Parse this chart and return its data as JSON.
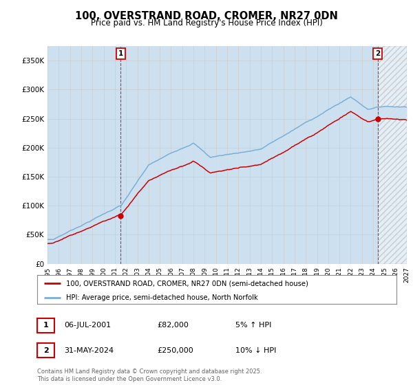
{
  "title": "100, OVERSTRAND ROAD, CROMER, NR27 0DN",
  "subtitle": "Price paid vs. HM Land Registry's House Price Index (HPI)",
  "legend_line1": "100, OVERSTRAND ROAD, CROMER, NR27 0DN (semi-detached house)",
  "legend_line2": "HPI: Average price, semi-detached house, North Norfolk",
  "annotation1_label": "1",
  "annotation1_date": "06-JUL-2001",
  "annotation1_price": "£82,000",
  "annotation1_hpi": "5% ↑ HPI",
  "annotation2_label": "2",
  "annotation2_date": "31-MAY-2024",
  "annotation2_price": "£250,000",
  "annotation2_hpi": "10% ↓ HPI",
  "footer": "Contains HM Land Registry data © Crown copyright and database right 2025.\nThis data is licensed under the Open Government Licence v3.0.",
  "hpi_color": "#7bafd4",
  "hpi_fill_color": "#cce0f0",
  "price_color": "#cc0000",
  "annotation_color": "#cc0000",
  "bg_color": "#ffffff",
  "grid_color": "#cccccc",
  "ylim": [
    0,
    375000
  ],
  "yticks": [
    0,
    50000,
    100000,
    150000,
    200000,
    250000,
    300000,
    350000
  ],
  "ylabel_fmt": [
    "£0",
    "£50K",
    "£100K",
    "£150K",
    "£200K",
    "£250K",
    "£300K",
    "£350K"
  ],
  "x_start_year": 1995.0,
  "x_end_year": 2027.0,
  "sale1_year": 2001.52,
  "sale1_price": 82000,
  "sale2_year": 2024.42,
  "sale2_price": 250000
}
